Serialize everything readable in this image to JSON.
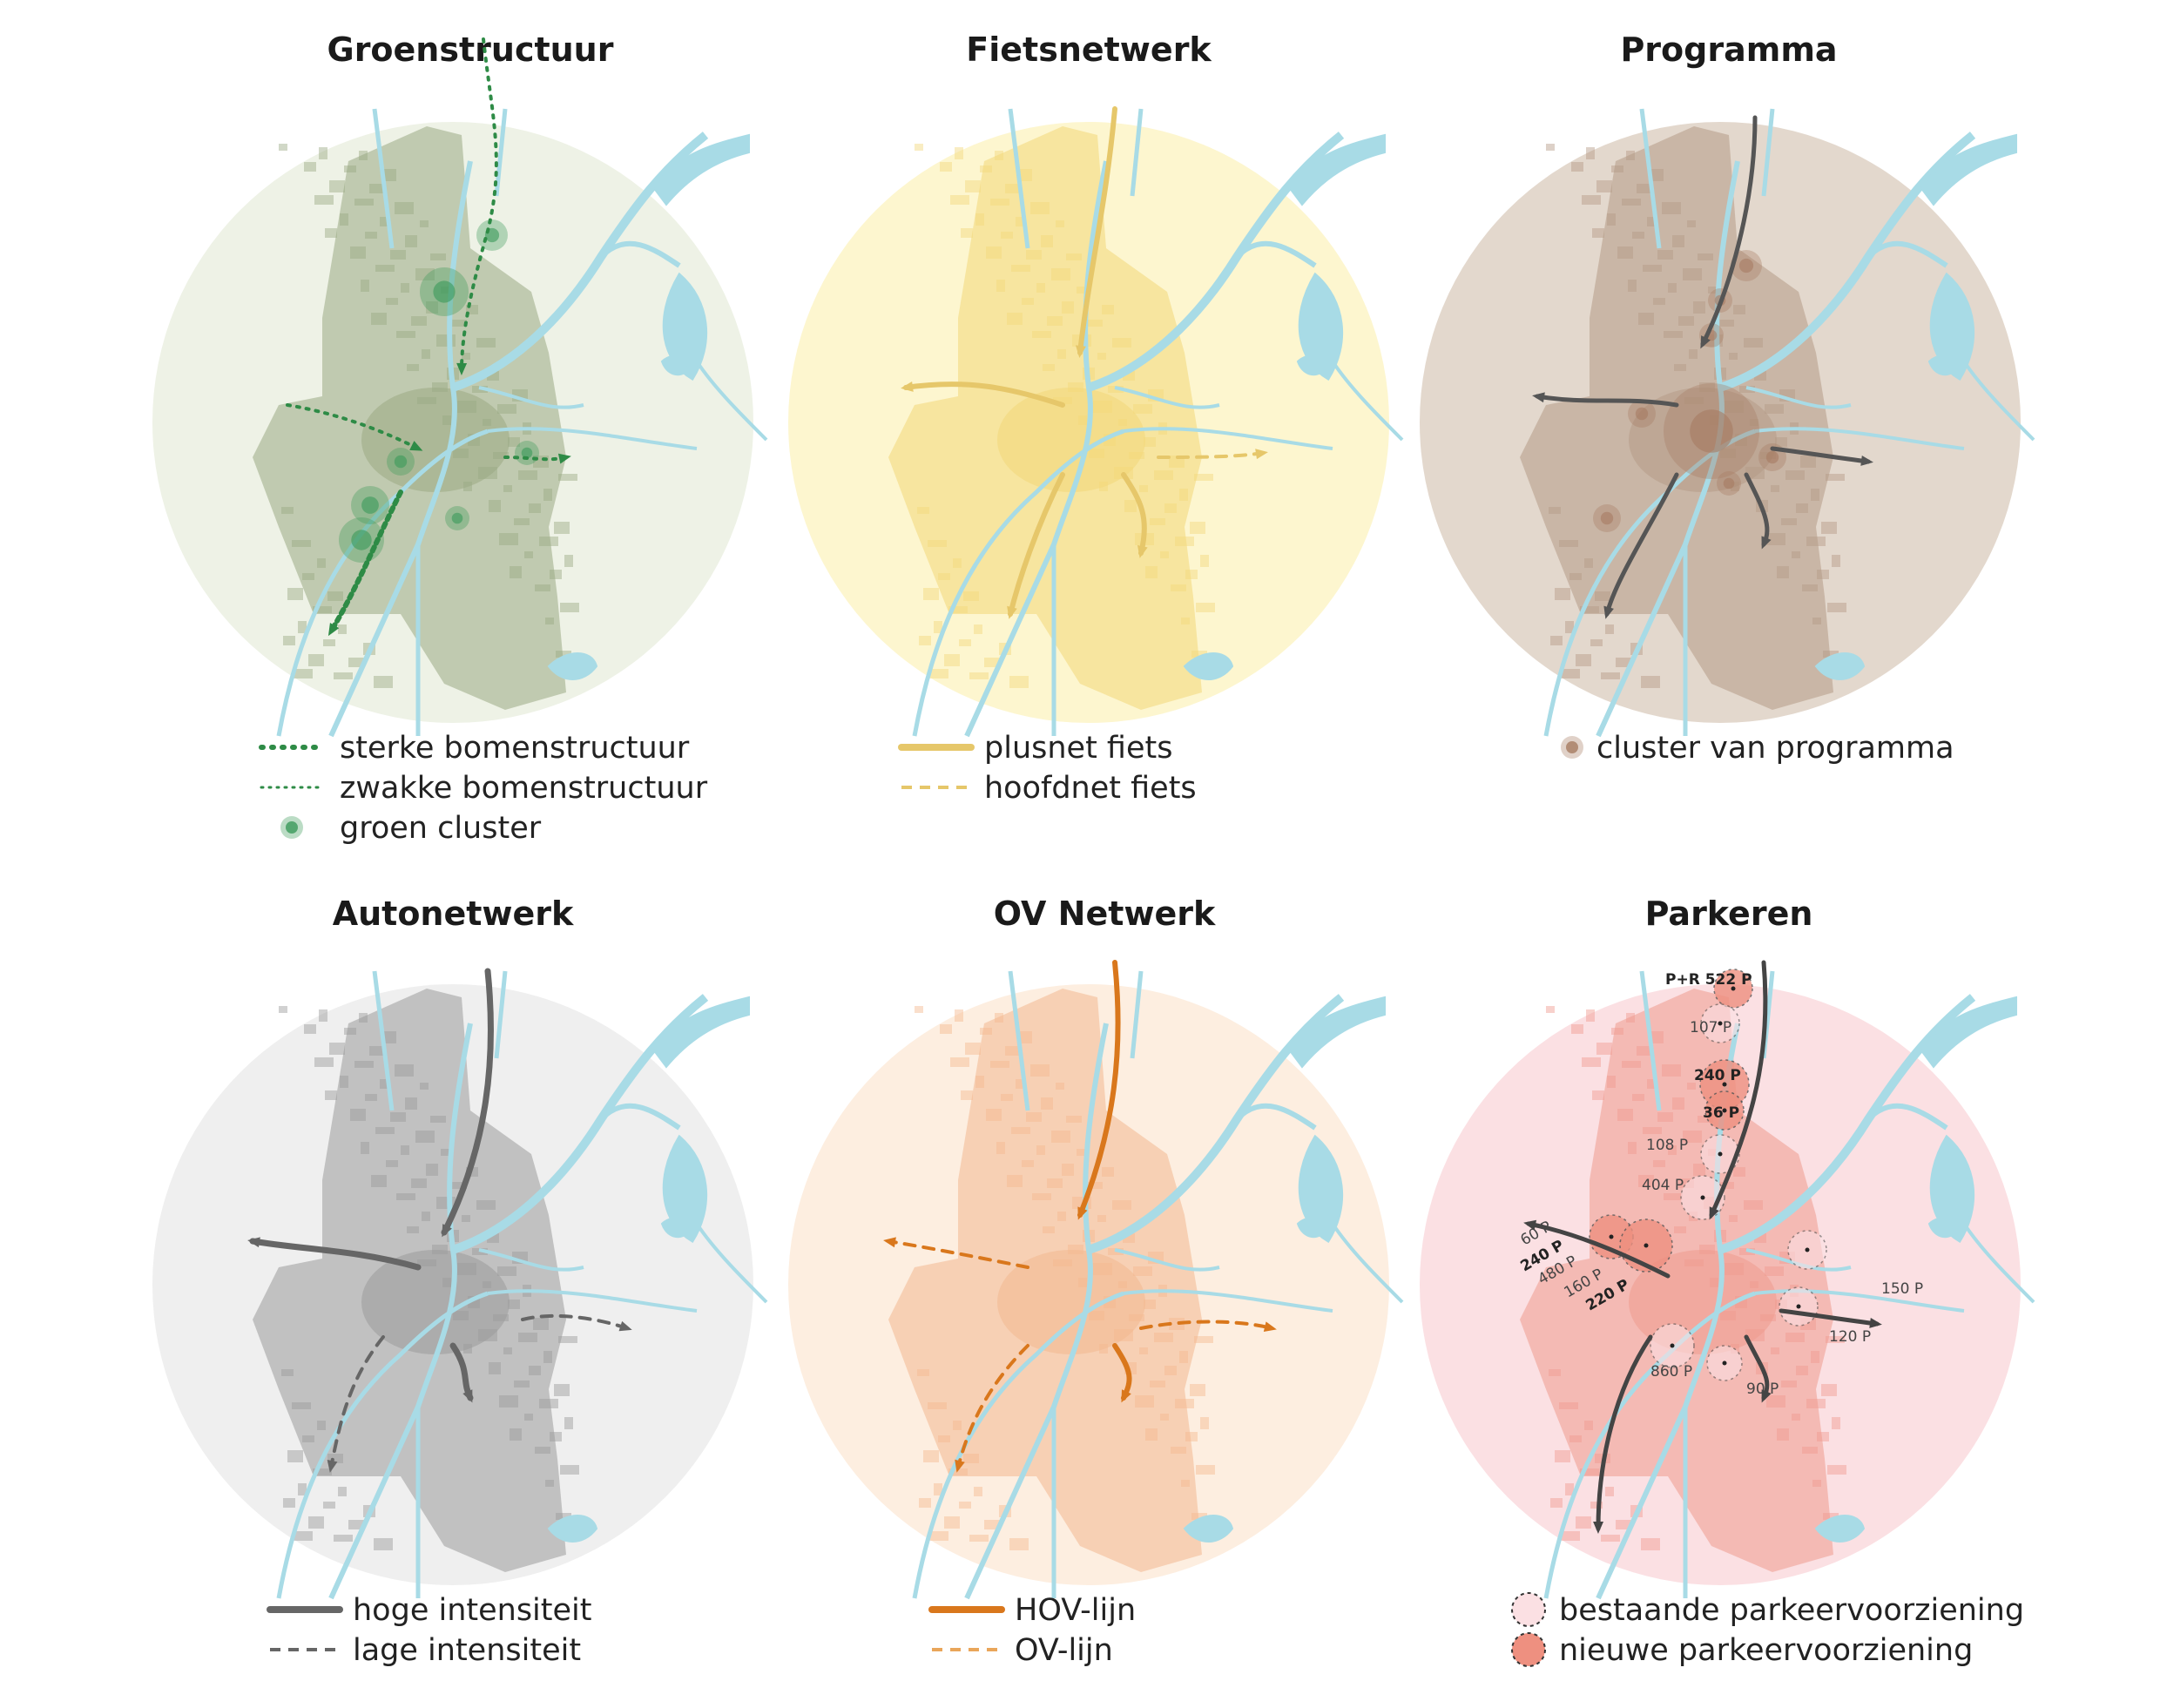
{
  "panels": [
    {
      "id": "groenstructuur",
      "title": "Groenstructuur",
      "circle_color": "#eef2e6",
      "city_color": "#9aa983",
      "legend": [
        {
          "symbol": "strong-dotted-line",
          "color": "#2e8b46",
          "label": "sterke bomenstructuur"
        },
        {
          "symbol": "weak-dotted-line",
          "color": "#2e8b46",
          "label": "zwakke bomenstructuur"
        },
        {
          "symbol": "green-cluster-dot",
          "color": "#3b9a5a",
          "label": "groen cluster"
        }
      ]
    },
    {
      "id": "fietsnetwerk",
      "title": "Fietsnetwerk",
      "circle_color": "#fdf6cf",
      "city_color": "#f2d779",
      "legend": [
        {
          "symbol": "solid-line",
          "color": "#e6c76a",
          "label": "plusnet fiets"
        },
        {
          "symbol": "dashed-line",
          "color": "#e6c76a",
          "label": "hoofdnet fiets"
        }
      ]
    },
    {
      "id": "programma",
      "title": "Programma",
      "circle_color": "#e3d8cd",
      "city_color": "#b49a86",
      "legend": [
        {
          "symbol": "brown-cluster-dot",
          "color": "#a67c62",
          "label": "cluster van programma"
        }
      ]
    },
    {
      "id": "autonetwerk",
      "title": "Autonetwerk",
      "circle_color": "#efefef",
      "city_color": "#9a9a9a",
      "legend": [
        {
          "symbol": "solid-line",
          "color": "#666666",
          "label": "hoge intensiteit"
        },
        {
          "symbol": "dashed-line",
          "color": "#666666",
          "label": "lage intensiteit"
        }
      ]
    },
    {
      "id": "ov-netwerk",
      "title": "OV Netwerk",
      "circle_color": "#fdeee0",
      "city_color": "#f3b88f",
      "legend": [
        {
          "symbol": "solid-line",
          "color": "#d9771c",
          "label": "HOV-lijn"
        },
        {
          "symbol": "dashed-line",
          "color": "#e9a65a",
          "label": "OV-lijn"
        }
      ]
    },
    {
      "id": "parkeren",
      "title": "Parkeren",
      "circle_color": "#fbe0e3",
      "city_color": "#ef9a8e",
      "legend": [
        {
          "symbol": "existing-parking-circle",
          "color": "#fbe0e3",
          "label": "bestaande parkeervoorziening"
        },
        {
          "symbol": "new-parking-circle",
          "color": "#ee9080",
          "label": "nieuwe parkeervoorziening"
        }
      ]
    }
  ],
  "parking_labels": [
    "P+R 522 P",
    "107 P",
    "240 P",
    "36 P",
    "108 P",
    "404 P",
    "60 P",
    "240 P",
    "480 P",
    "160 P",
    "220 P",
    "150 P",
    "120 P",
    "860 P",
    "90 P"
  ],
  "water_color": "#a8dbe6",
  "arrow_color": "#555555"
}
